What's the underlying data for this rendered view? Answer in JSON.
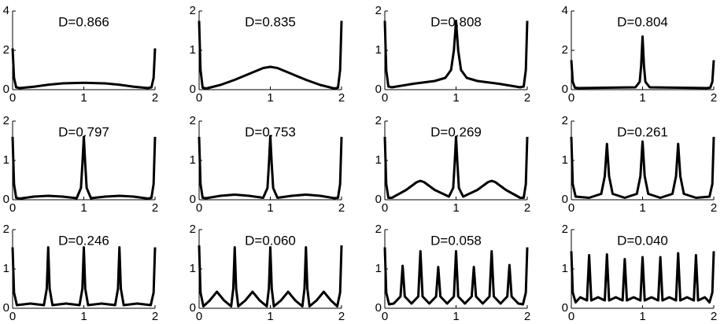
{
  "chart_data": [
    {
      "type": "line",
      "title": "D=0.866",
      "color": "#000000",
      "xlim": [
        0,
        2
      ],
      "xticks": [
        0,
        1,
        2
      ],
      "ylim": [
        0,
        4
      ],
      "yticks": [
        0,
        2,
        4
      ],
      "x": [
        0,
        0.02,
        0.05,
        0.1,
        0.3,
        0.5,
        0.7,
        1,
        1.3,
        1.5,
        1.7,
        1.9,
        1.95,
        1.98,
        2
      ],
      "values": [
        2.1,
        0.6,
        0.12,
        0.08,
        0.15,
        0.25,
        0.32,
        0.35,
        0.32,
        0.25,
        0.15,
        0.08,
        0.12,
        0.6,
        2.1
      ]
    },
    {
      "type": "line",
      "title": "D=0.835",
      "color": "#000000",
      "xlim": [
        0,
        2
      ],
      "xticks": [
        0,
        1,
        2
      ],
      "ylim": [
        0,
        2
      ],
      "yticks": [
        0,
        1,
        2
      ],
      "x": [
        0,
        0.02,
        0.05,
        0.1,
        0.3,
        0.5,
        0.7,
        0.9,
        1,
        1.1,
        1.3,
        1.5,
        1.7,
        1.9,
        1.95,
        1.98,
        2
      ],
      "values": [
        1.75,
        0.5,
        0.05,
        0.03,
        0.12,
        0.25,
        0.4,
        0.55,
        0.58,
        0.55,
        0.4,
        0.25,
        0.12,
        0.03,
        0.05,
        0.5,
        1.75
      ]
    },
    {
      "type": "line",
      "title": "D=0.808",
      "color": "#000000",
      "xlim": [
        0,
        2
      ],
      "xticks": [
        0,
        1,
        2
      ],
      "ylim": [
        0,
        2
      ],
      "yticks": [
        0,
        1,
        2
      ],
      "x": [
        0,
        0.02,
        0.05,
        0.1,
        0.4,
        0.7,
        0.85,
        0.93,
        0.97,
        1,
        1.03,
        1.07,
        1.15,
        1.3,
        1.6,
        1.9,
        1.95,
        1.98,
        2
      ],
      "values": [
        1.75,
        0.5,
        0.08,
        0.06,
        0.15,
        0.22,
        0.3,
        0.5,
        1.0,
        1.75,
        1.0,
        0.5,
        0.3,
        0.22,
        0.15,
        0.06,
        0.08,
        0.5,
        1.75
      ]
    },
    {
      "type": "line",
      "title": "D=0.804",
      "color": "#000000",
      "xlim": [
        0,
        2
      ],
      "xticks": [
        0,
        1,
        2
      ],
      "ylim": [
        0,
        4
      ],
      "yticks": [
        0,
        2,
        4
      ],
      "x": [
        0,
        0.02,
        0.05,
        0.1,
        0.5,
        0.9,
        0.96,
        0.98,
        1,
        1.02,
        1.04,
        1.1,
        1.5,
        1.9,
        1.95,
        1.98,
        2
      ],
      "values": [
        1.5,
        0.4,
        0.1,
        0.08,
        0.1,
        0.12,
        0.4,
        1.2,
        2.7,
        1.2,
        0.4,
        0.12,
        0.1,
        0.08,
        0.1,
        0.4,
        1.5
      ]
    },
    {
      "type": "line",
      "title": "D=0.797",
      "color": "#000000",
      "xlim": [
        0,
        2
      ],
      "xticks": [
        0,
        1,
        2
      ],
      "ylim": [
        0,
        2
      ],
      "yticks": [
        0,
        1,
        2
      ],
      "x": [
        0,
        0.02,
        0.05,
        0.1,
        0.3,
        0.5,
        0.7,
        0.9,
        0.96,
        0.98,
        1,
        1.02,
        1.04,
        1.1,
        1.3,
        1.5,
        1.7,
        1.9,
        1.95,
        1.98,
        2
      ],
      "values": [
        1.6,
        0.4,
        0.05,
        0.03,
        0.08,
        0.1,
        0.08,
        0.04,
        0.3,
        0.9,
        1.6,
        0.9,
        0.3,
        0.04,
        0.08,
        0.1,
        0.08,
        0.03,
        0.05,
        0.4,
        1.6
      ]
    },
    {
      "type": "line",
      "title": "D=0.753",
      "color": "#000000",
      "xlim": [
        0,
        2
      ],
      "xticks": [
        0,
        1,
        2
      ],
      "ylim": [
        0,
        2
      ],
      "yticks": [
        0,
        1,
        2
      ],
      "x": [
        0,
        0.02,
        0.05,
        0.1,
        0.3,
        0.5,
        0.7,
        0.9,
        0.96,
        0.98,
        1,
        1.02,
        1.04,
        1.1,
        1.3,
        1.5,
        1.7,
        1.9,
        1.95,
        1.98,
        2
      ],
      "values": [
        1.6,
        0.4,
        0.05,
        0.04,
        0.1,
        0.13,
        0.1,
        0.05,
        0.3,
        0.9,
        1.62,
        0.9,
        0.3,
        0.05,
        0.1,
        0.13,
        0.1,
        0.04,
        0.05,
        0.4,
        1.6
      ]
    },
    {
      "type": "line",
      "title": "D=0.269",
      "color": "#000000",
      "xlim": [
        0,
        2
      ],
      "xticks": [
        0,
        1,
        2
      ],
      "ylim": [
        0,
        2
      ],
      "yticks": [
        0,
        1,
        2
      ],
      "x": [
        0,
        0.02,
        0.05,
        0.1,
        0.3,
        0.45,
        0.5,
        0.55,
        0.7,
        0.9,
        0.96,
        0.98,
        1,
        1.02,
        1.04,
        1.1,
        1.3,
        1.45,
        1.5,
        1.55,
        1.7,
        1.9,
        1.95,
        1.98,
        2
      ],
      "values": [
        1.6,
        0.4,
        0.05,
        0.05,
        0.25,
        0.45,
        0.48,
        0.45,
        0.25,
        0.08,
        0.3,
        0.9,
        1.6,
        0.9,
        0.3,
        0.08,
        0.25,
        0.45,
        0.48,
        0.45,
        0.25,
        0.05,
        0.05,
        0.4,
        1.6
      ]
    },
    {
      "type": "line",
      "title": "D=0.261",
      "color": "#000000",
      "xlim": [
        0,
        2
      ],
      "xticks": [
        0,
        1,
        2
      ],
      "ylim": [
        0,
        2
      ],
      "yticks": [
        0,
        1,
        2
      ],
      "x": [
        0,
        0.02,
        0.06,
        0.25,
        0.42,
        0.47,
        0.5,
        0.53,
        0.58,
        0.75,
        0.92,
        0.97,
        1,
        1.03,
        1.08,
        1.25,
        1.42,
        1.47,
        1.5,
        1.53,
        1.58,
        1.75,
        1.94,
        1.98,
        2
      ],
      "values": [
        1.6,
        0.4,
        0.08,
        0.05,
        0.15,
        0.6,
        1.42,
        0.6,
        0.15,
        0.05,
        0.15,
        0.6,
        1.48,
        0.6,
        0.15,
        0.05,
        0.15,
        0.6,
        1.42,
        0.6,
        0.15,
        0.05,
        0.08,
        0.4,
        1.6
      ]
    },
    {
      "type": "line",
      "title": "D=0.246",
      "color": "#000000",
      "xlim": [
        0,
        2
      ],
      "xticks": [
        0,
        1,
        2
      ],
      "ylim": [
        0,
        2
      ],
      "yticks": [
        0,
        1,
        2
      ],
      "x": [
        0,
        0.02,
        0.06,
        0.25,
        0.44,
        0.48,
        0.5,
        0.52,
        0.56,
        0.75,
        0.94,
        0.98,
        1,
        1.02,
        1.06,
        1.25,
        1.44,
        1.48,
        1.5,
        1.52,
        1.56,
        1.75,
        1.94,
        1.98,
        2
      ],
      "values": [
        1.55,
        0.4,
        0.08,
        0.12,
        0.08,
        0.5,
        1.55,
        0.5,
        0.08,
        0.12,
        0.08,
        0.5,
        1.55,
        0.5,
        0.08,
        0.12,
        0.08,
        0.5,
        1.55,
        0.5,
        0.08,
        0.12,
        0.08,
        0.4,
        1.55
      ]
    },
    {
      "type": "line",
      "title": "D=0.060",
      "color": "#000000",
      "xlim": [
        0,
        2
      ],
      "xticks": [
        0,
        1,
        2
      ],
      "ylim": [
        0,
        2
      ],
      "yticks": [
        0,
        1,
        2
      ],
      "x": [
        0,
        0.02,
        0.06,
        0.15,
        0.25,
        0.35,
        0.45,
        0.48,
        0.5,
        0.52,
        0.55,
        0.65,
        0.75,
        0.85,
        0.95,
        0.98,
        1,
        1.02,
        1.05,
        1.15,
        1.25,
        1.35,
        1.45,
        1.48,
        1.5,
        1.52,
        1.55,
        1.65,
        1.75,
        1.85,
        1.94,
        1.98,
        2
      ],
      "values": [
        1.6,
        0.4,
        0.05,
        0.2,
        0.42,
        0.2,
        0.05,
        0.5,
        1.55,
        0.5,
        0.05,
        0.2,
        0.42,
        0.2,
        0.05,
        0.5,
        1.55,
        0.5,
        0.05,
        0.2,
        0.42,
        0.2,
        0.05,
        0.5,
        1.55,
        0.5,
        0.05,
        0.2,
        0.42,
        0.2,
        0.05,
        0.4,
        1.6
      ]
    },
    {
      "type": "line",
      "title": "D=0.058",
      "color": "#000000",
      "xlim": [
        0,
        2
      ],
      "xticks": [
        0,
        1,
        2
      ],
      "ylim": [
        0,
        2
      ],
      "yticks": [
        0,
        1,
        2
      ],
      "x": [
        0,
        0.02,
        0.06,
        0.125,
        0.22,
        0.25,
        0.28,
        0.375,
        0.47,
        0.5,
        0.53,
        0.625,
        0.72,
        0.75,
        0.78,
        0.875,
        0.97,
        1,
        1.03,
        1.125,
        1.22,
        1.25,
        1.28,
        1.375,
        1.47,
        1.5,
        1.53,
        1.625,
        1.72,
        1.75,
        1.78,
        1.875,
        1.94,
        1.98,
        2
      ],
      "values": [
        1.55,
        0.4,
        0.1,
        0.12,
        0.3,
        1.08,
        0.3,
        0.12,
        0.3,
        1.45,
        0.3,
        0.12,
        0.3,
        1.05,
        0.3,
        0.12,
        0.3,
        1.45,
        0.3,
        0.12,
        0.3,
        1.05,
        0.3,
        0.12,
        0.3,
        1.45,
        0.3,
        0.12,
        0.3,
        1.1,
        0.3,
        0.12,
        0.1,
        0.4,
        1.55
      ]
    },
    {
      "type": "line",
      "title": "D=0.040",
      "color": "#000000",
      "xlim": [
        0,
        2
      ],
      "xticks": [
        0,
        1,
        2
      ],
      "ylim": [
        0,
        2
      ],
      "yticks": [
        0,
        1,
        2
      ],
      "x": [
        0,
        0.02,
        0.06,
        0.125,
        0.22,
        0.25,
        0.28,
        0.375,
        0.47,
        0.5,
        0.53,
        0.625,
        0.72,
        0.75,
        0.78,
        0.875,
        0.97,
        1,
        1.03,
        1.125,
        1.22,
        1.25,
        1.28,
        1.375,
        1.47,
        1.5,
        1.53,
        1.625,
        1.72,
        1.75,
        1.78,
        1.875,
        1.94,
        1.98,
        2
      ],
      "values": [
        1.45,
        0.4,
        0.15,
        0.28,
        0.2,
        1.35,
        0.2,
        0.28,
        0.2,
        1.37,
        0.2,
        0.28,
        0.2,
        1.25,
        0.2,
        0.28,
        0.2,
        1.3,
        0.2,
        0.28,
        0.2,
        1.3,
        0.2,
        0.28,
        0.2,
        1.4,
        0.2,
        0.28,
        0.2,
        1.35,
        0.2,
        0.28,
        0.15,
        0.4,
        1.45
      ]
    }
  ]
}
